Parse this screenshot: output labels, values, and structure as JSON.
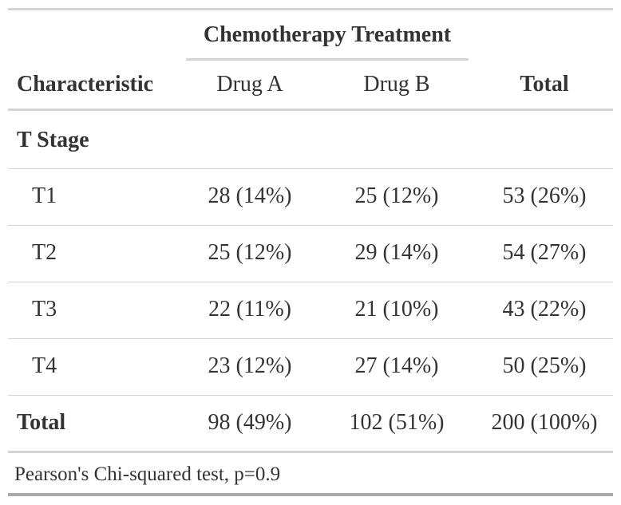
{
  "table": {
    "spanner": "Chemotherapy Treatment",
    "headers": [
      "Characteristic",
      "Drug A",
      "Drug B",
      "Total"
    ],
    "group_label": "T Stage",
    "rows": [
      {
        "label": "T1",
        "drug_a": "28 (14%)",
        "drug_b": "25 (12%)",
        "total": "53 (26%)"
      },
      {
        "label": "T2",
        "drug_a": "25 (12%)",
        "drug_b": "29 (14%)",
        "total": "54 (27%)"
      },
      {
        "label": "T3",
        "drug_a": "22 (11%)",
        "drug_b": "21 (10%)",
        "total": "43 (22%)"
      },
      {
        "label": "T4",
        "drug_a": "23 (12%)",
        "drug_b": "27 (14%)",
        "total": "50 (25%)"
      }
    ],
    "total_row": {
      "label": "Total",
      "drug_a": "98 (49%)",
      "drug_b": "102 (51%)",
      "total": "200 (100%)"
    },
    "footnote": "Pearson's Chi-squared test, p=0.9"
  }
}
